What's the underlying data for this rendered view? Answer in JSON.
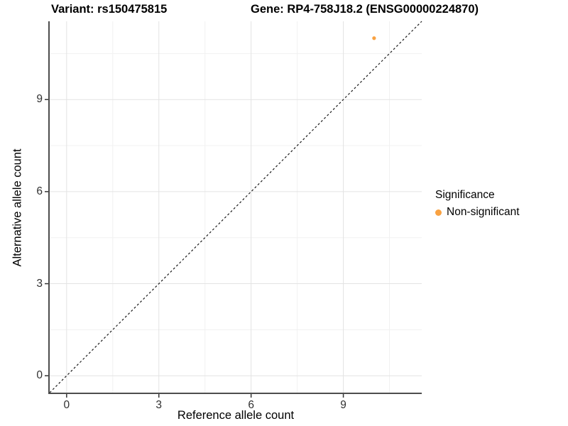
{
  "title": {
    "variant": "Variant: rs150475815",
    "gene": "Gene: RP4-758J18.2 (ENSG00000224870)"
  },
  "axes": {
    "x": {
      "label": "Reference allele count",
      "ticks": [
        "0",
        "3",
        "6",
        "9"
      ]
    },
    "y": {
      "label": "Alternative allele count",
      "ticks": [
        "0",
        "3",
        "6",
        "9"
      ]
    }
  },
  "legend": {
    "title": "Significance",
    "entries": [
      {
        "label": "Non-significant",
        "color": "#F9A242",
        "marker": "circle"
      }
    ]
  },
  "chart_data": {
    "type": "scatter",
    "title": "Variant: rs150475815   Gene: RP4-758J18.2 (ENSG00000224870)",
    "xlabel": "Reference allele count",
    "ylabel": "Alternative allele count",
    "xlim": [
      -0.55,
      11.55
    ],
    "ylim": [
      -0.55,
      11.55
    ],
    "x_major_ticks": [
      0,
      3,
      6,
      9
    ],
    "y_major_ticks": [
      0,
      3,
      6,
      9
    ],
    "x_minor_gridlines": [
      1.5,
      4.5,
      7.5,
      10.5
    ],
    "y_minor_gridlines": [
      1.5,
      4.5,
      7.5,
      10.5
    ],
    "grid": "on",
    "legend_position": "right",
    "series": [
      {
        "name": "Non-significant",
        "type": "scatter",
        "color": "#F9A242",
        "points": [
          [
            10,
            11
          ]
        ]
      }
    ],
    "reference_line": {
      "kind": "identity y=x",
      "style": "dashed",
      "color": "#1A1A1A",
      "from": [
        -0.55,
        -0.55
      ],
      "to": [
        11.55,
        11.55
      ]
    }
  },
  "colors": {
    "background": "#FFFFFF",
    "grid_major": "#E3E3E3",
    "grid_minor": "#F1F1F1",
    "axis_line": "#4D4D4D",
    "tick_mark": "#333333",
    "tick_label": "#303030",
    "point": "#F9A242"
  }
}
